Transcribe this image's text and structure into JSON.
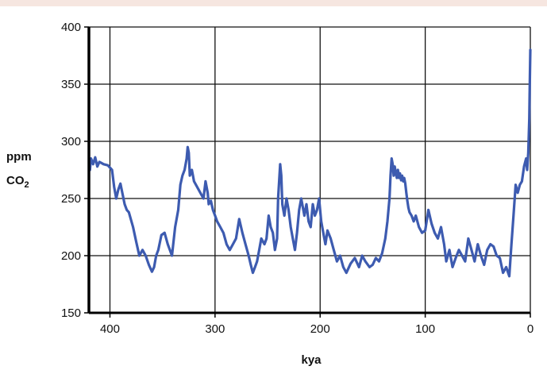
{
  "colors": {
    "top_band": "#f6e6e0",
    "line": "#3d5bb0",
    "grid": "#111111",
    "axis": "#000000"
  },
  "chart_data": {
    "type": "line",
    "title": "",
    "ylabel_main": "ppm",
    "ylabel_co": "CO",
    "ylabel_sub": "2",
    "xlabel": "kya",
    "xlim": [
      420,
      0
    ],
    "ylim": [
      150,
      400
    ],
    "xticks": [
      400,
      300,
      200,
      100,
      0
    ],
    "yticks": [
      150,
      200,
      250,
      300,
      350,
      400
    ],
    "grid": true,
    "series": [
      {
        "x": [
          419,
          418,
          416,
          414,
          412,
          410,
          406,
          402,
          398,
          396,
          394,
          392,
          390,
          386,
          384,
          382,
          378,
          375,
          372,
          369,
          366,
          363,
          360,
          358,
          356,
          354,
          351,
          348,
          345,
          341,
          338,
          335,
          333,
          331,
          329,
          327,
          326,
          325,
          324,
          322,
          320,
          317,
          314,
          311,
          309,
          307,
          306,
          304,
          302,
          300,
          298,
          295,
          292,
          289,
          286,
          283,
          280,
          277,
          274,
          271,
          268,
          266,
          264,
          262,
          260,
          258,
          256,
          253,
          251,
          249,
          247,
          245,
          243,
          241,
          240,
          239,
          238,
          237,
          236,
          234,
          232,
          230,
          228,
          226,
          224,
          222,
          220,
          218,
          215,
          213,
          211,
          209,
          207,
          205,
          203,
          201,
          199,
          197,
          195,
          193,
          190,
          187,
          184,
          181,
          178,
          175,
          171,
          167,
          163,
          160,
          157,
          153,
          150,
          147,
          144,
          141,
          138,
          136,
          134,
          133,
          132,
          131,
          130,
          129,
          128,
          127,
          126,
          125,
          124,
          123,
          122,
          121,
          120,
          119,
          118,
          117,
          116,
          115,
          113,
          111,
          109,
          106,
          103,
          100,
          97,
          94,
          91,
          88,
          85,
          82,
          80,
          77,
          74,
          71,
          68,
          65,
          62,
          59,
          56,
          53,
          50,
          47,
          44,
          41,
          38,
          35,
          32,
          29,
          26,
          23,
          20,
          18,
          16,
          14,
          12,
          10,
          8,
          6,
          4,
          3,
          2,
          1,
          0.5,
          0
        ],
        "y": [
          275,
          285,
          280,
          286,
          278,
          282,
          280,
          279,
          275,
          260,
          250,
          258,
          263,
          245,
          240,
          238,
          225,
          212,
          200,
          205,
          200,
          192,
          186,
          190,
          200,
          205,
          218,
          220,
          210,
          200,
          225,
          240,
          262,
          270,
          275,
          285,
          295,
          290,
          270,
          275,
          265,
          260,
          255,
          250,
          265,
          255,
          245,
          248,
          240,
          235,
          230,
          225,
          220,
          210,
          205,
          210,
          215,
          232,
          220,
          210,
          200,
          192,
          185,
          190,
          195,
          205,
          215,
          210,
          215,
          235,
          225,
          220,
          205,
          215,
          250,
          265,
          280,
          270,
          245,
          235,
          250,
          240,
          225,
          215,
          205,
          220,
          240,
          250,
          235,
          245,
          230,
          225,
          245,
          235,
          240,
          250,
          230,
          220,
          210,
          222,
          215,
          205,
          195,
          200,
          190,
          185,
          193,
          198,
          190,
          200,
          195,
          190,
          192,
          198,
          195,
          202,
          215,
          230,
          250,
          270,
          285,
          280,
          270,
          278,
          272,
          268,
          275,
          268,
          272,
          266,
          270,
          265,
          268,
          263,
          255,
          248,
          242,
          238,
          235,
          230,
          235,
          225,
          220,
          222,
          240,
          228,
          220,
          215,
          225,
          210,
          195,
          205,
          190,
          198,
          205,
          200,
          195,
          215,
          205,
          195,
          210,
          200,
          192,
          205,
          210,
          208,
          200,
          198,
          185,
          190,
          182,
          210,
          235,
          262,
          255,
          262,
          265,
          278,
          285,
          275,
          290,
          320,
          350,
          380
        ]
      }
    ]
  }
}
